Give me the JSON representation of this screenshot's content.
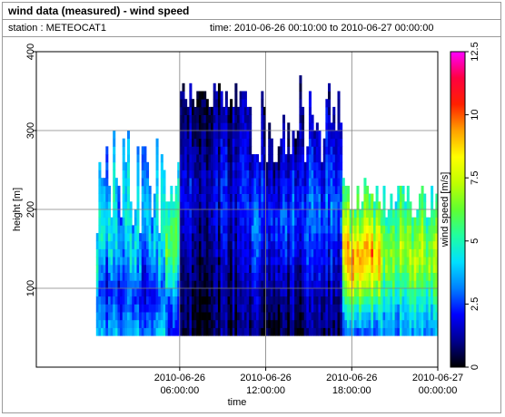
{
  "header": {
    "title": "wind data (measured) - wind speed",
    "station_text": "station : METEOCAT1",
    "time_text": "time: 2010-06-26 00:10:00 to 2010-06-27 00:00:00"
  },
  "chart_data": {
    "type": "heatmap",
    "xlabel": "time",
    "ylabel": "height [m]",
    "colorbar_label": "wind speed [m/s]",
    "x_range": [
      "2010-06-25 20:00:00",
      "2010-06-27 00:00:00"
    ],
    "ylim": [
      0,
      400
    ],
    "clim": [
      0,
      12.5
    ],
    "x_ticks": [
      {
        "t": "2010-06-26 06:00:00",
        "line1": "2010-06-26",
        "line2": "06:00:00"
      },
      {
        "t": "2010-06-26 12:00:00",
        "line1": "2010-06-26",
        "line2": "12:00:00"
      },
      {
        "t": "2010-06-26 18:00:00",
        "line1": "2010-06-26",
        "line2": "18:00:00"
      },
      {
        "t": "2010-06-27 00:00:00",
        "line1": "2010-06-27",
        "line2": "00:00:00"
      }
    ],
    "y_ticks": [
      100,
      200,
      300,
      400
    ],
    "colorbar_ticks": [
      "0",
      "2.5",
      "5",
      "7.5",
      "10",
      "12.5"
    ],
    "colormap": [
      "#000000",
      "#00008f",
      "#0000ff",
      "#0080ff",
      "#00e0ff",
      "#20ffa0",
      "#60ff30",
      "#c0ff00",
      "#ffff00",
      "#ffa000",
      "#ff2000",
      "#ff0040",
      "#ff00ff"
    ],
    "grid": true,
    "height_min": 40,
    "height_step": 10,
    "time_step_minutes": 10,
    "profile_segments": [
      {
        "from": "2010-06-26 00:10:00",
        "to": "2010-06-26 05:00:00",
        "levels": [
          3.5,
          3.0,
          2.5,
          2.2,
          2.6,
          3.2,
          4.0,
          4.5,
          4.2,
          3.8,
          3.4,
          3.0
        ],
        "top_m": [
          160,
          300
        ],
        "tint": "cyan"
      },
      {
        "from": "2010-06-26 05:00:00",
        "to": "2010-06-26 06:00:00",
        "levels": [
          2.0,
          2.5,
          4.5,
          6.0,
          5.5,
          4.0
        ],
        "top_m": [
          200,
          260
        ],
        "tint": "green"
      },
      {
        "from": "2010-06-26 06:00:00",
        "to": "2010-06-26 11:00:00",
        "levels": [
          0.4,
          0.7,
          1.0,
          1.4,
          1.8,
          1.4,
          1.0,
          0.6
        ],
        "top_m": [
          320,
          355
        ],
        "tint": "darkblue"
      },
      {
        "from": "2010-06-26 11:00:00",
        "to": "2010-06-26 17:20:00",
        "levels": [
          0.6,
          1.0,
          1.6,
          2.2,
          2.8,
          2.2,
          1.6,
          1.0
        ],
        "top_m": [
          250,
          365
        ],
        "tint": "blue"
      },
      {
        "from": "2010-06-26 17:20:00",
        "to": "2010-06-26 20:00:00",
        "levels": [
          3.0,
          4.5,
          6.5,
          8.5,
          9.5,
          8.0,
          6.5,
          5.5
        ],
        "top_m": [
          190,
          240
        ],
        "tint": "hot"
      },
      {
        "from": "2010-06-26 20:00:00",
        "to": "2010-06-27 00:00:00",
        "levels": [
          3.5,
          4.0,
          5.0,
          6.0,
          7.0,
          6.5,
          5.5,
          5.0
        ],
        "top_m": [
          180,
          230
        ],
        "tint": "warm"
      }
    ]
  }
}
